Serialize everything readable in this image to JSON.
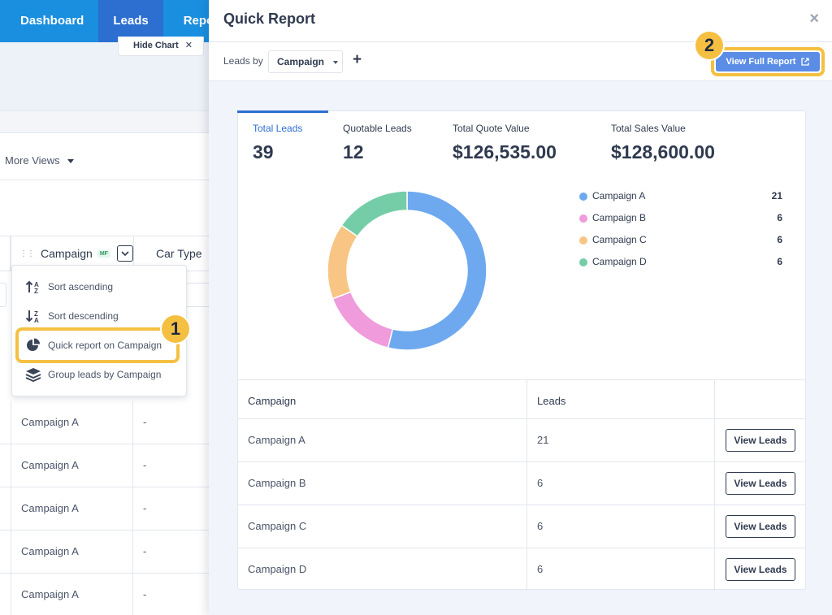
{
  "nav": {
    "items": [
      "Dashboard",
      "Leads",
      "Reports"
    ],
    "active": "Leads"
  },
  "background": {
    "hide_chart_label": "Hide Chart",
    "more_views_label": "More Views",
    "columns": {
      "campaign": "Campaign",
      "campaign_badge": "MF",
      "car_type": "Car Type"
    },
    "rows": [
      {
        "campaign": "Campaign A",
        "car_type": "-"
      },
      {
        "campaign": "Campaign A",
        "car_type": "-"
      },
      {
        "campaign": "Campaign A",
        "car_type": "-"
      },
      {
        "campaign": "Campaign A",
        "car_type": "-"
      },
      {
        "campaign": "Campaign A",
        "car_type": "-"
      }
    ]
  },
  "menu": {
    "items": [
      {
        "label": "Sort ascending",
        "icon": "sort-ascending-icon"
      },
      {
        "label": "Sort descending",
        "icon": "sort-descending-icon"
      },
      {
        "label": "Quick report on Campaign",
        "icon": "pie-chart-icon"
      },
      {
        "label": "Group leads by Campaign",
        "icon": "layers-icon"
      }
    ],
    "highlighted_index": 2
  },
  "callouts": {
    "first": "1",
    "second": "2"
  },
  "modal": {
    "title": "Quick Report",
    "leads_by_label": "Leads by",
    "group_select_value": "Campaign",
    "add_label": "+",
    "view_full_report_label": "View Full Report",
    "close_label": "×"
  },
  "kpis": [
    {
      "label": "Total Leads",
      "value": "39"
    },
    {
      "label": "Quotable Leads",
      "value": "12"
    },
    {
      "label": "Total Quote Value",
      "value": "$126,535.00"
    },
    {
      "label": "Total Sales Value",
      "value": "$128,600.00"
    }
  ],
  "chart_data": {
    "type": "pie",
    "categories": [
      "Campaign A",
      "Campaign B",
      "Campaign C",
      "Campaign D"
    ],
    "values": [
      21,
      6,
      6,
      6
    ],
    "colors": [
      "#6ea9ef",
      "#ef9bdc",
      "#f8c585",
      "#74cda7"
    ],
    "donut": true,
    "legend": "right"
  },
  "table": {
    "headers": {
      "campaign": "Campaign",
      "leads": "Leads"
    },
    "button_label": "View Leads",
    "rows": [
      {
        "campaign": "Campaign A",
        "leads": "21"
      },
      {
        "campaign": "Campaign B",
        "leads": "6"
      },
      {
        "campaign": "Campaign C",
        "leads": "6"
      },
      {
        "campaign": "Campaign D",
        "leads": "6"
      }
    ]
  }
}
